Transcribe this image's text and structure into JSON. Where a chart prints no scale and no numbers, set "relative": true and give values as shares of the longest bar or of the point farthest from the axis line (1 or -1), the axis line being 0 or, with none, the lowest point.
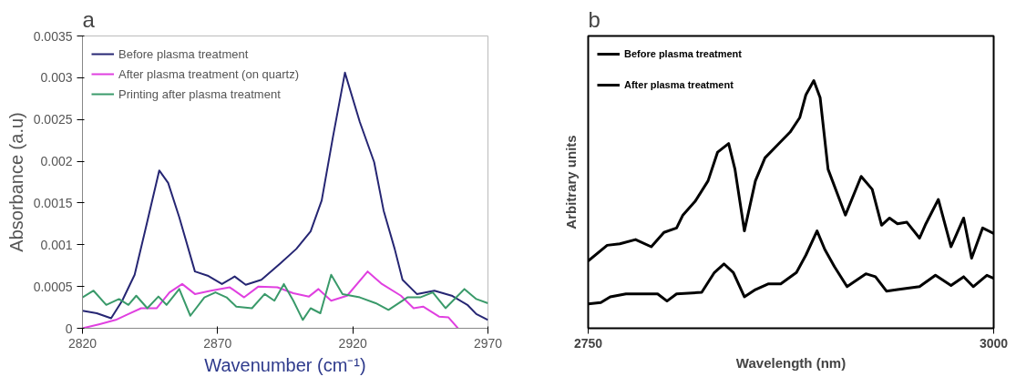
{
  "chart_data": [
    {
      "type": "line",
      "title": "a",
      "xlabel": "Wavenumber (cm⁻¹)",
      "ylabel": "Absorbance (a.u)",
      "xlim": [
        2820,
        2970
      ],
      "xticks": [
        2820,
        2870,
        2920,
        2970
      ],
      "ylim": [
        0,
        0.0035
      ],
      "yticks": [
        0,
        0.0005,
        0.001,
        0.0015,
        0.002,
        0.0025,
        0.003,
        0.0035
      ],
      "grid": false,
      "legend": "top left",
      "marker": "none",
      "line_style": "solid",
      "series": [
        {
          "name": "Before plasma treatment",
          "color": "#262673",
          "x": [
            2820,
            2825.3,
            2830.6,
            2834.7,
            2839.3,
            2844.0,
            2848.4,
            2851.7,
            2855.8,
            2861.6,
            2866.3,
            2871.6,
            2876.3,
            2880.4,
            2886.2,
            2893.3,
            2899.1,
            2904.4,
            2908.5,
            2912.6,
            2917.1,
            2922.6,
            2927.9,
            2931.4,
            2935.5,
            2938.4,
            2943.7,
            2950.2,
            2956.6,
            2962.4,
            2965.7,
            2970
          ],
          "values": [
            0.00021,
            0.00018,
            0.00012,
            0.00033,
            0.00064,
            0.00128,
            0.00189,
            0.00174,
            0.00133,
            0.00068,
            0.00063,
            0.00053,
            0.00062,
            0.00052,
            0.00058,
            0.00078,
            0.00095,
            0.00116,
            0.00153,
            0.00228,
            0.00306,
            0.00247,
            0.00199,
            0.00141,
            0.00095,
            0.00058,
            0.00041,
            0.00045,
            0.00039,
            0.00028,
            0.00017,
            0.0001
          ]
        },
        {
          "name": "After plasma treatment (on quartz)",
          "color": "#e040e0",
          "x": [
            2820,
            2826.4,
            2832.3,
            2837.0,
            2841.7,
            2847.5,
            2852.2,
            2856.9,
            2861.6,
            2867.5,
            2874.5,
            2879.8,
            2885.1,
            2892.1,
            2898.0,
            2903.8,
            2907.3,
            2912.0,
            2917.9,
            2925.5,
            2930.8,
            2937.8,
            2942.5,
            2946.0,
            2951.9,
            2955.4,
            2958.9
          ],
          "values": [
            0.0,
            5e-05,
            0.0001,
            0.00017,
            0.00024,
            0.00024,
            0.00043,
            0.00053,
            0.00041,
            0.00045,
            0.00049,
            0.00037,
            0.0005,
            0.00049,
            0.00042,
            0.00038,
            0.00047,
            0.00033,
            0.00039,
            0.00068,
            0.00053,
            0.00039,
            0.00024,
            0.00026,
            0.00014,
            0.00013,
            0.0
          ]
        },
        {
          "name": "Printing after plasma treatment",
          "color": "#3a9a6a",
          "x": [
            2820,
            2824.1,
            2828.8,
            2833.5,
            2837.0,
            2839.9,
            2844.0,
            2848.1,
            2851.1,
            2855.8,
            2859.9,
            2865.1,
            2869.2,
            2873.3,
            2876.9,
            2882.7,
            2887.4,
            2891.0,
            2894.5,
            2898.0,
            2901.5,
            2904.4,
            2908.0,
            2912.0,
            2916.2,
            2922.6,
            2928.5,
            2933.2,
            2940.2,
            2944.9,
            2949.6,
            2954.3,
            2961.3,
            2965.7,
            2970
          ],
          "values": [
            0.00037,
            0.00045,
            0.00028,
            0.00035,
            0.00028,
            0.00039,
            0.00024,
            0.00038,
            0.00028,
            0.00047,
            0.00015,
            0.00037,
            0.00043,
            0.00037,
            0.00026,
            0.00024,
            0.00041,
            0.00033,
            0.00053,
            0.00033,
            0.0001,
            0.00024,
            0.00018,
            0.00064,
            0.00041,
            0.00037,
            0.0003,
            0.00022,
            0.00037,
            0.00037,
            0.00043,
            0.00024,
            0.00047,
            0.00035,
            0.0003
          ]
        }
      ]
    },
    {
      "type": "line",
      "title": "b",
      "xlabel": "Wavelength (nm)",
      "ylabel": "Arbitrary units",
      "xlim": [
        2750,
        3000
      ],
      "xticks": [
        2750,
        3000
      ],
      "relative": true,
      "grid": false,
      "legend": "top left",
      "marker": "none",
      "line_style": "solid",
      "series": [
        {
          "name": "Before plasma treatment",
          "color": "#000000",
          "x": [
            2750,
            2761.7,
            2769.5,
            2779.2,
            2788.9,
            2796.7,
            2804.5,
            2808.4,
            2816.1,
            2823.9,
            2829.8,
            2836.6,
            2840.5,
            2846.3,
            2853.1,
            2859.0,
            2866.7,
            2874.5,
            2880.4,
            2884.2,
            2889.1,
            2893.0,
            2897.9,
            2908.6,
            2918.3,
            2925.1,
            2930.9,
            2935.8,
            2940.7,
            2946.5,
            2954.3,
            2958.2,
            2965.9,
            2973.7,
            2981.5,
            2986.4,
            2993.2,
            3000
          ],
          "values": [
            0.272,
            0.335,
            0.341,
            0.358,
            0.329,
            0.387,
            0.405,
            0.457,
            0.514,
            0.595,
            0.711,
            0.746,
            0.642,
            0.393,
            0.595,
            0.688,
            0.74,
            0.792,
            0.85,
            0.942,
            1.0,
            0.931,
            0.642,
            0.457,
            0.613,
            0.561,
            0.416,
            0.445,
            0.422,
            0.428,
            0.364,
            0.422,
            0.52,
            0.329,
            0.445,
            0.283,
            0.405,
            0.383
          ]
        },
        {
          "name": "After plasma treatment",
          "color": "#000000",
          "x": [
            2750,
            2757.8,
            2763.6,
            2773.3,
            2783.1,
            2792.8,
            2798.6,
            2804.5,
            2820.0,
            2827.8,
            2833.7,
            2839.5,
            2846.3,
            2853.1,
            2860.9,
            2868.7,
            2878.4,
            2884.2,
            2891.1,
            2895.9,
            2901.8,
            2909.6,
            2921.2,
            2927.1,
            2933.9,
            2940.7,
            2954.3,
            2964.1,
            2973.7,
            2981.5,
            2987.4,
            2995.8,
            3000
          ],
          "values": [
            0.098,
            0.104,
            0.127,
            0.139,
            0.139,
            0.139,
            0.11,
            0.139,
            0.145,
            0.225,
            0.26,
            0.225,
            0.127,
            0.156,
            0.179,
            0.179,
            0.225,
            0.295,
            0.393,
            0.318,
            0.249,
            0.168,
            0.22,
            0.208,
            0.15,
            0.156,
            0.168,
            0.214,
            0.173,
            0.208,
            0.168,
            0.214,
            0.202
          ]
        }
      ]
    }
  ]
}
